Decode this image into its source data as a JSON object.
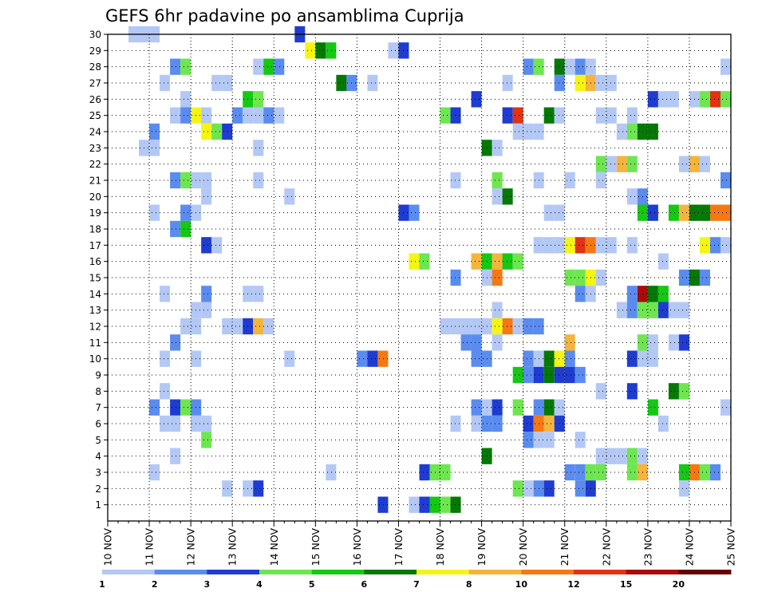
{
  "chart_data": {
    "type": "heatmap",
    "title": "GEFS 6hr padavine po ansamblima Cuprija",
    "xlabel": "",
    "ylabel": "",
    "x_unit": "6-hour step",
    "x_ticks": [
      "10 NOV",
      "11 NOV",
      "12 NOV",
      "13 NOV",
      "14 NOV",
      "15 NOV",
      "16 NOV",
      "17 NOV",
      "18 NOV",
      "19 NOV",
      "20 NOV",
      "21 NOV",
      "22 NOV",
      "23 NOV",
      "24 NOV",
      "25 NOV"
    ],
    "y_ticks": [
      1,
      2,
      3,
      4,
      5,
      6,
      7,
      8,
      9,
      10,
      11,
      12,
      13,
      14,
      15,
      16,
      17,
      18,
      19,
      20,
      21,
      22,
      23,
      24,
      25,
      26,
      27,
      28,
      29,
      30
    ],
    "xlim": [
      0,
      60
    ],
    "ylim": [
      0,
      30
    ],
    "grid": true,
    "colorbar": {
      "labels": [
        "1",
        "2",
        "3",
        "4",
        "5",
        "6",
        "7",
        "8",
        "10",
        "12",
        "15",
        "20"
      ],
      "colors": [
        "#b4c8f5",
        "#5a8cf0",
        "#1e3cd2",
        "#6ee650",
        "#14c814",
        "#057805",
        "#f5f514",
        "#f5b43c",
        "#f57814",
        "#e13214",
        "#aa0a0a",
        "#640000"
      ]
    },
    "cells": [
      [
        2,
        1,
        30
      ],
      [
        3,
        1,
        30
      ],
      [
        4,
        1,
        30
      ],
      [
        18,
        3,
        30
      ],
      [
        19,
        7,
        29
      ],
      [
        20,
        6,
        29
      ],
      [
        21,
        5,
        29
      ],
      [
        27,
        1,
        29
      ],
      [
        28,
        3,
        29
      ],
      [
        6,
        2,
        28
      ],
      [
        7,
        4,
        28
      ],
      [
        14,
        1,
        28
      ],
      [
        15,
        5,
        28
      ],
      [
        16,
        2,
        28
      ],
      [
        40,
        2,
        28
      ],
      [
        41,
        4,
        28
      ],
      [
        43,
        6,
        28
      ],
      [
        44,
        1,
        28
      ],
      [
        45,
        2,
        28
      ],
      [
        46,
        1,
        28
      ],
      [
        59,
        1,
        28
      ],
      [
        5,
        1,
        27
      ],
      [
        10,
        1,
        27
      ],
      [
        11,
        1,
        27
      ],
      [
        22,
        6,
        27
      ],
      [
        23,
        2,
        27
      ],
      [
        25,
        1,
        27
      ],
      [
        38,
        1,
        27
      ],
      [
        43,
        2,
        27
      ],
      [
        45,
        7,
        27
      ],
      [
        46,
        8,
        27
      ],
      [
        47,
        1,
        27
      ],
      [
        48,
        1,
        27
      ],
      [
        7,
        1,
        26
      ],
      [
        13,
        5,
        26
      ],
      [
        14,
        4,
        26
      ],
      [
        35,
        3,
        26
      ],
      [
        52,
        3,
        26
      ],
      [
        53,
        1,
        26
      ],
      [
        54,
        1,
        26
      ],
      [
        56,
        1,
        26
      ],
      [
        57,
        4,
        26
      ],
      [
        58,
        10,
        26
      ],
      [
        59,
        4,
        26
      ],
      [
        6,
        1,
        25
      ],
      [
        7,
        2,
        25
      ],
      [
        8,
        7,
        25
      ],
      [
        9,
        1,
        25
      ],
      [
        12,
        2,
        25
      ],
      [
        13,
        1,
        25
      ],
      [
        14,
        1,
        25
      ],
      [
        15,
        2,
        25
      ],
      [
        16,
        1,
        25
      ],
      [
        32,
        4,
        25
      ],
      [
        33,
        3,
        25
      ],
      [
        38,
        3,
        25
      ],
      [
        39,
        10,
        25
      ],
      [
        42,
        6,
        25
      ],
      [
        43,
        1,
        25
      ],
      [
        47,
        1,
        25
      ],
      [
        48,
        1,
        25
      ],
      [
        50,
        1,
        25
      ],
      [
        4,
        2,
        24
      ],
      [
        9,
        7,
        24
      ],
      [
        10,
        4,
        24
      ],
      [
        11,
        3,
        24
      ],
      [
        39,
        1,
        24
      ],
      [
        40,
        1,
        24
      ],
      [
        41,
        1,
        24
      ],
      [
        49,
        1,
        24
      ],
      [
        50,
        4,
        24
      ],
      [
        51,
        6,
        24
      ],
      [
        52,
        6,
        24
      ],
      [
        3,
        1,
        23
      ],
      [
        4,
        1,
        23
      ],
      [
        14,
        1,
        23
      ],
      [
        36,
        6,
        23
      ],
      [
        37,
        1,
        23
      ],
      [
        47,
        4,
        22
      ],
      [
        48,
        1,
        22
      ],
      [
        49,
        8,
        22
      ],
      [
        50,
        4,
        22
      ],
      [
        55,
        1,
        22
      ],
      [
        56,
        8,
        22
      ],
      [
        57,
        1,
        22
      ],
      [
        6,
        2,
        21
      ],
      [
        7,
        4,
        21
      ],
      [
        8,
        1,
        21
      ],
      [
        9,
        1,
        21
      ],
      [
        14,
        1,
        21
      ],
      [
        33,
        1,
        21
      ],
      [
        37,
        4,
        21
      ],
      [
        41,
        1,
        21
      ],
      [
        44,
        1,
        21
      ],
      [
        47,
        1,
        21
      ],
      [
        59,
        2,
        21
      ],
      [
        9,
        1,
        20
      ],
      [
        17,
        1,
        20
      ],
      [
        37,
        1,
        20
      ],
      [
        38,
        6,
        20
      ],
      [
        50,
        1,
        20
      ],
      [
        51,
        2,
        20
      ],
      [
        4,
        1,
        19
      ],
      [
        7,
        2,
        19
      ],
      [
        8,
        1,
        19
      ],
      [
        28,
        3,
        19
      ],
      [
        29,
        2,
        19
      ],
      [
        42,
        1,
        19
      ],
      [
        43,
        1,
        19
      ],
      [
        51,
        5,
        19
      ],
      [
        52,
        3,
        19
      ],
      [
        54,
        5,
        19
      ],
      [
        55,
        8,
        19
      ],
      [
        56,
        6,
        19
      ],
      [
        57,
        6,
        19
      ],
      [
        58,
        9,
        19
      ],
      [
        59,
        9,
        19
      ],
      [
        6,
        2,
        18
      ],
      [
        7,
        5,
        18
      ],
      [
        9,
        3,
        17
      ],
      [
        10,
        1,
        17
      ],
      [
        41,
        1,
        17
      ],
      [
        42,
        1,
        17
      ],
      [
        43,
        1,
        17
      ],
      [
        44,
        7,
        17
      ],
      [
        45,
        10,
        17
      ],
      [
        46,
        9,
        17
      ],
      [
        47,
        1,
        17
      ],
      [
        48,
        1,
        17
      ],
      [
        50,
        1,
        17
      ],
      [
        57,
        7,
        17
      ],
      [
        58,
        2,
        17
      ],
      [
        59,
        1,
        17
      ],
      [
        29,
        7,
        16
      ],
      [
        30,
        4,
        16
      ],
      [
        35,
        8,
        16
      ],
      [
        36,
        5,
        16
      ],
      [
        37,
        8,
        16
      ],
      [
        38,
        5,
        16
      ],
      [
        39,
        4,
        16
      ],
      [
        53,
        1,
        16
      ],
      [
        33,
        2,
        15
      ],
      [
        36,
        1,
        15
      ],
      [
        37,
        9,
        15
      ],
      [
        44,
        4,
        15
      ],
      [
        45,
        4,
        15
      ],
      [
        46,
        7,
        15
      ],
      [
        47,
        1,
        15
      ],
      [
        55,
        2,
        15
      ],
      [
        56,
        6,
        15
      ],
      [
        57,
        2,
        15
      ],
      [
        5,
        1,
        14
      ],
      [
        9,
        2,
        14
      ],
      [
        13,
        1,
        14
      ],
      [
        14,
        1,
        14
      ],
      [
        45,
        2,
        14
      ],
      [
        46,
        1,
        14
      ],
      [
        50,
        2,
        14
      ],
      [
        51,
        11,
        14
      ],
      [
        52,
        6,
        14
      ],
      [
        53,
        5,
        14
      ],
      [
        8,
        1,
        13
      ],
      [
        9,
        1,
        13
      ],
      [
        37,
        1,
        13
      ],
      [
        49,
        1,
        13
      ],
      [
        50,
        2,
        13
      ],
      [
        51,
        4,
        13
      ],
      [
        52,
        4,
        13
      ],
      [
        53,
        3,
        13
      ],
      [
        54,
        1,
        13
      ],
      [
        55,
        1,
        13
      ],
      [
        7,
        1,
        12
      ],
      [
        8,
        1,
        12
      ],
      [
        11,
        1,
        12
      ],
      [
        12,
        1,
        12
      ],
      [
        13,
        3,
        12
      ],
      [
        14,
        8,
        12
      ],
      [
        15,
        1,
        12
      ],
      [
        32,
        1,
        12
      ],
      [
        33,
        1,
        12
      ],
      [
        34,
        1,
        12
      ],
      [
        35,
        1,
        12
      ],
      [
        36,
        1,
        12
      ],
      [
        37,
        7,
        12
      ],
      [
        38,
        9,
        12
      ],
      [
        39,
        1,
        12
      ],
      [
        40,
        2,
        12
      ],
      [
        41,
        2,
        12
      ],
      [
        6,
        2,
        11
      ],
      [
        34,
        2,
        11
      ],
      [
        35,
        2,
        11
      ],
      [
        37,
        1,
        11
      ],
      [
        44,
        8,
        11
      ],
      [
        51,
        4,
        11
      ],
      [
        52,
        1,
        11
      ],
      [
        54,
        1,
        11
      ],
      [
        55,
        3,
        11
      ],
      [
        5,
        1,
        10
      ],
      [
        8,
        1,
        10
      ],
      [
        17,
        1,
        10
      ],
      [
        24,
        2,
        10
      ],
      [
        25,
        3,
        10
      ],
      [
        26,
        9,
        10
      ],
      [
        35,
        2,
        10
      ],
      [
        36,
        2,
        10
      ],
      [
        40,
        2,
        10
      ],
      [
        41,
        1,
        10
      ],
      [
        42,
        6,
        10
      ],
      [
        43,
        7,
        10
      ],
      [
        44,
        2,
        10
      ],
      [
        50,
        3,
        10
      ],
      [
        51,
        1,
        10
      ],
      [
        52,
        1,
        10
      ],
      [
        39,
        5,
        9
      ],
      [
        40,
        2,
        9
      ],
      [
        41,
        3,
        9
      ],
      [
        42,
        6,
        9
      ],
      [
        43,
        3,
        9
      ],
      [
        44,
        3,
        9
      ],
      [
        45,
        2,
        9
      ],
      [
        5,
        1,
        8
      ],
      [
        47,
        1,
        8
      ],
      [
        50,
        3,
        8
      ],
      [
        54,
        6,
        8
      ],
      [
        55,
        4,
        8
      ],
      [
        4,
        2,
        7
      ],
      [
        6,
        3,
        7
      ],
      [
        7,
        4,
        7
      ],
      [
        8,
        2,
        7
      ],
      [
        35,
        2,
        7
      ],
      [
        36,
        1,
        7
      ],
      [
        37,
        3,
        7
      ],
      [
        39,
        4,
        7
      ],
      [
        41,
        2,
        7
      ],
      [
        42,
        6,
        7
      ],
      [
        43,
        1,
        7
      ],
      [
        52,
        5,
        7
      ],
      [
        59,
        1,
        7
      ],
      [
        5,
        1,
        6
      ],
      [
        6,
        1,
        6
      ],
      [
        8,
        1,
        6
      ],
      [
        9,
        1,
        6
      ],
      [
        33,
        1,
        6
      ],
      [
        35,
        1,
        6
      ],
      [
        36,
        2,
        6
      ],
      [
        37,
        2,
        6
      ],
      [
        40,
        3,
        6
      ],
      [
        41,
        9,
        6
      ],
      [
        42,
        8,
        6
      ],
      [
        43,
        3,
        6
      ],
      [
        53,
        1,
        6
      ],
      [
        9,
        4,
        5
      ],
      [
        40,
        2,
        5
      ],
      [
        41,
        1,
        5
      ],
      [
        42,
        1,
        5
      ],
      [
        45,
        1,
        5
      ],
      [
        6,
        1,
        4
      ],
      [
        36,
        6,
        4
      ],
      [
        47,
        1,
        4
      ],
      [
        48,
        1,
        4
      ],
      [
        49,
        1,
        4
      ],
      [
        50,
        4,
        4
      ],
      [
        51,
        1,
        4
      ],
      [
        4,
        1,
        3
      ],
      [
        21,
        1,
        3
      ],
      [
        30,
        3,
        3
      ],
      [
        31,
        4,
        3
      ],
      [
        32,
        4,
        3
      ],
      [
        44,
        2,
        3
      ],
      [
        45,
        2,
        3
      ],
      [
        46,
        4,
        3
      ],
      [
        47,
        4,
        3
      ],
      [
        50,
        4,
        3
      ],
      [
        51,
        8,
        3
      ],
      [
        55,
        5,
        3
      ],
      [
        56,
        9,
        3
      ],
      [
        57,
        4,
        3
      ],
      [
        58,
        2,
        3
      ],
      [
        11,
        1,
        2
      ],
      [
        13,
        1,
        2
      ],
      [
        14,
        3,
        2
      ],
      [
        39,
        4,
        2
      ],
      [
        40,
        1,
        2
      ],
      [
        41,
        2,
        2
      ],
      [
        42,
        3,
        2
      ],
      [
        45,
        2,
        2
      ],
      [
        46,
        3,
        2
      ],
      [
        55,
        1,
        2
      ],
      [
        26,
        3,
        1
      ],
      [
        29,
        1,
        1
      ],
      [
        30,
        3,
        1
      ],
      [
        31,
        5,
        1
      ],
      [
        32,
        4,
        1
      ],
      [
        33,
        6,
        1
      ]
    ]
  }
}
